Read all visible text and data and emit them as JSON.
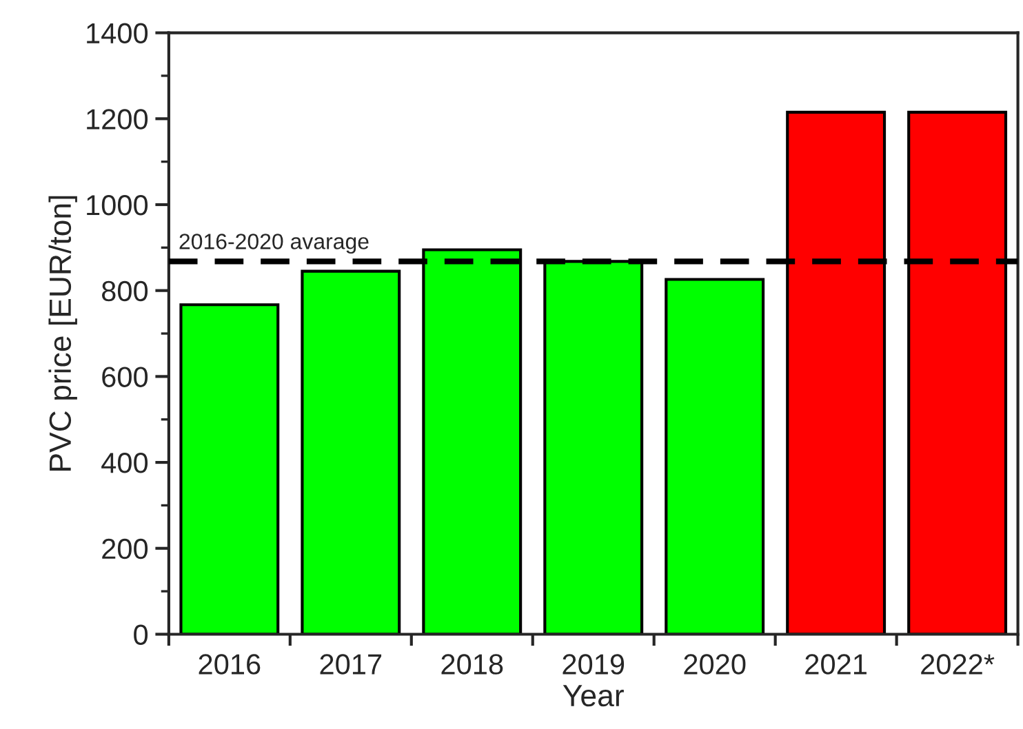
{
  "chart_data": {
    "type": "bar",
    "xlabel": "Year",
    "ylabel": "PVC price [EUR/ton]",
    "categories": [
      "2016",
      "2017",
      "2018",
      "2019",
      "2020",
      "2021",
      "2022*"
    ],
    "values": [
      767,
      845,
      895,
      868,
      826,
      1215,
      1215
    ],
    "colors": [
      "#00ff00",
      "#00ff00",
      "#00ff00",
      "#00ff00",
      "#00ff00",
      "#ff0000",
      "#ff0000"
    ],
    "ylim": [
      0,
      1400
    ],
    "yticks": [
      0,
      200,
      400,
      600,
      800,
      1000,
      1200,
      1400
    ],
    "ref_lines": [
      {
        "axis": "y",
        "value": 868,
        "label": "2016-2020 avarage",
        "color": "#000000",
        "line_style": "dashed"
      }
    ],
    "grid": false,
    "legend": false
  }
}
